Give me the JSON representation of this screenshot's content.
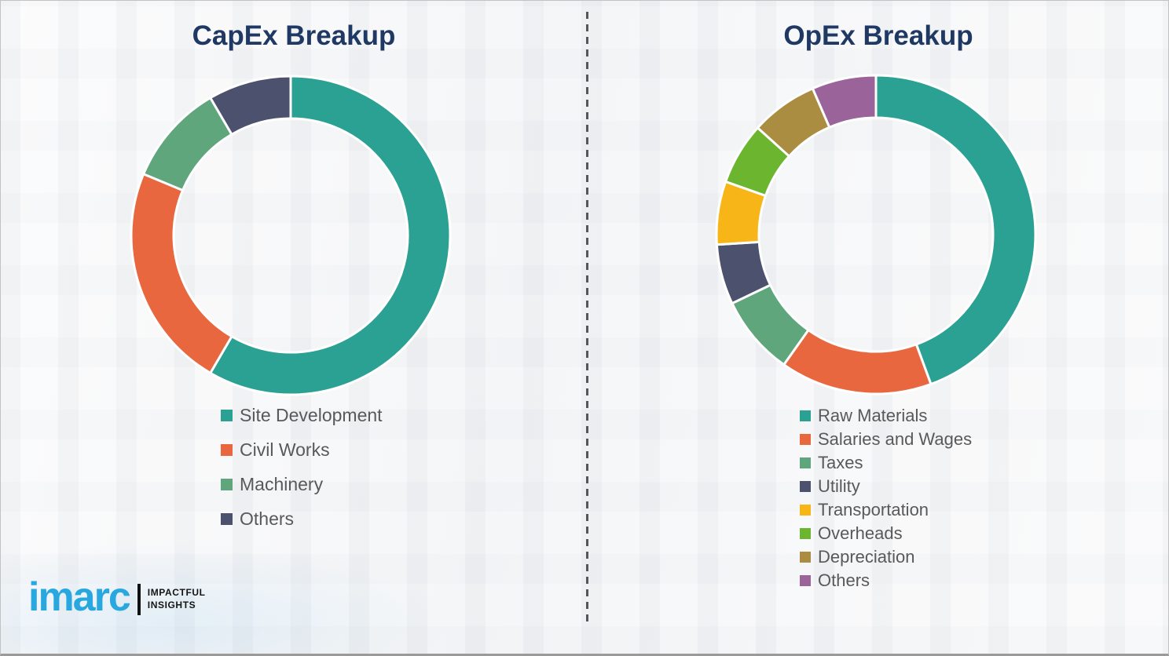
{
  "chart_data": [
    {
      "type": "pie",
      "id": "capex",
      "title": "CapEx Breakup",
      "donut": true,
      "start_angle": 0,
      "direction": "clockwise",
      "legend_position": "bottom-left",
      "labels": [
        "Site Development",
        "Civil Works",
        "Machinery",
        "Others"
      ],
      "values": [
        58.4,
        22.9,
        10.3,
        8.4
      ],
      "colors": [
        "#2BA193",
        "#E8673F",
        "#5FA67D",
        "#4C526E"
      ]
    },
    {
      "type": "pie",
      "id": "opex",
      "title": "OpEx Breakup",
      "donut": true,
      "start_angle": 0,
      "direction": "clockwise",
      "legend_position": "bottom-left",
      "labels": [
        "Raw Materials",
        "Salaries and Wages",
        "Taxes",
        "Utility",
        "Transportation",
        "Overheads",
        "Depreciation",
        "Others"
      ],
      "values": [
        44.4,
        15.4,
        8.1,
        6.1,
        6.4,
        6.3,
        6.8,
        6.5
      ],
      "colors": [
        "#2BA193",
        "#E8673F",
        "#5FA67D",
        "#4C526E",
        "#F8B517",
        "#6CB52E",
        "#AA8D40",
        "#9A6399"
      ]
    }
  ],
  "divider": {
    "style": "vertical-dashed"
  },
  "logo": {
    "brand": "imarc",
    "tagline": [
      "IMPACTFUL",
      "INSIGHTS"
    ],
    "brand_color": "#29A8E0",
    "text_color": "#141414"
  }
}
